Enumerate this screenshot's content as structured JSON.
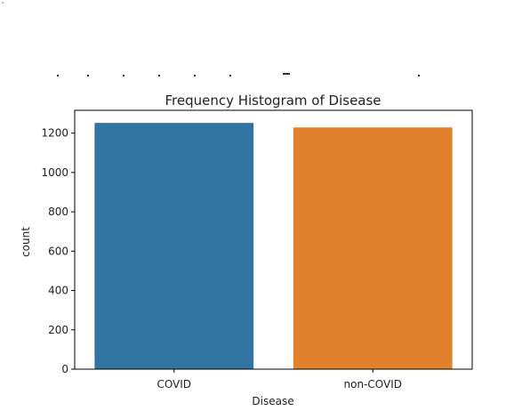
{
  "chart_data": {
    "type": "bar",
    "title": "Frequency Histogram of Disease",
    "xlabel": "Disease",
    "ylabel": "count",
    "categories": [
      "COVID",
      "non-COVID"
    ],
    "values": [
      1252,
      1229
    ],
    "colors": [
      "#3274a1",
      "#e1812c"
    ],
    "ylim": [
      0,
      1316
    ],
    "yticks": [
      0,
      200,
      400,
      600,
      800,
      1000,
      1200
    ],
    "grid": false,
    "legend": "none"
  }
}
